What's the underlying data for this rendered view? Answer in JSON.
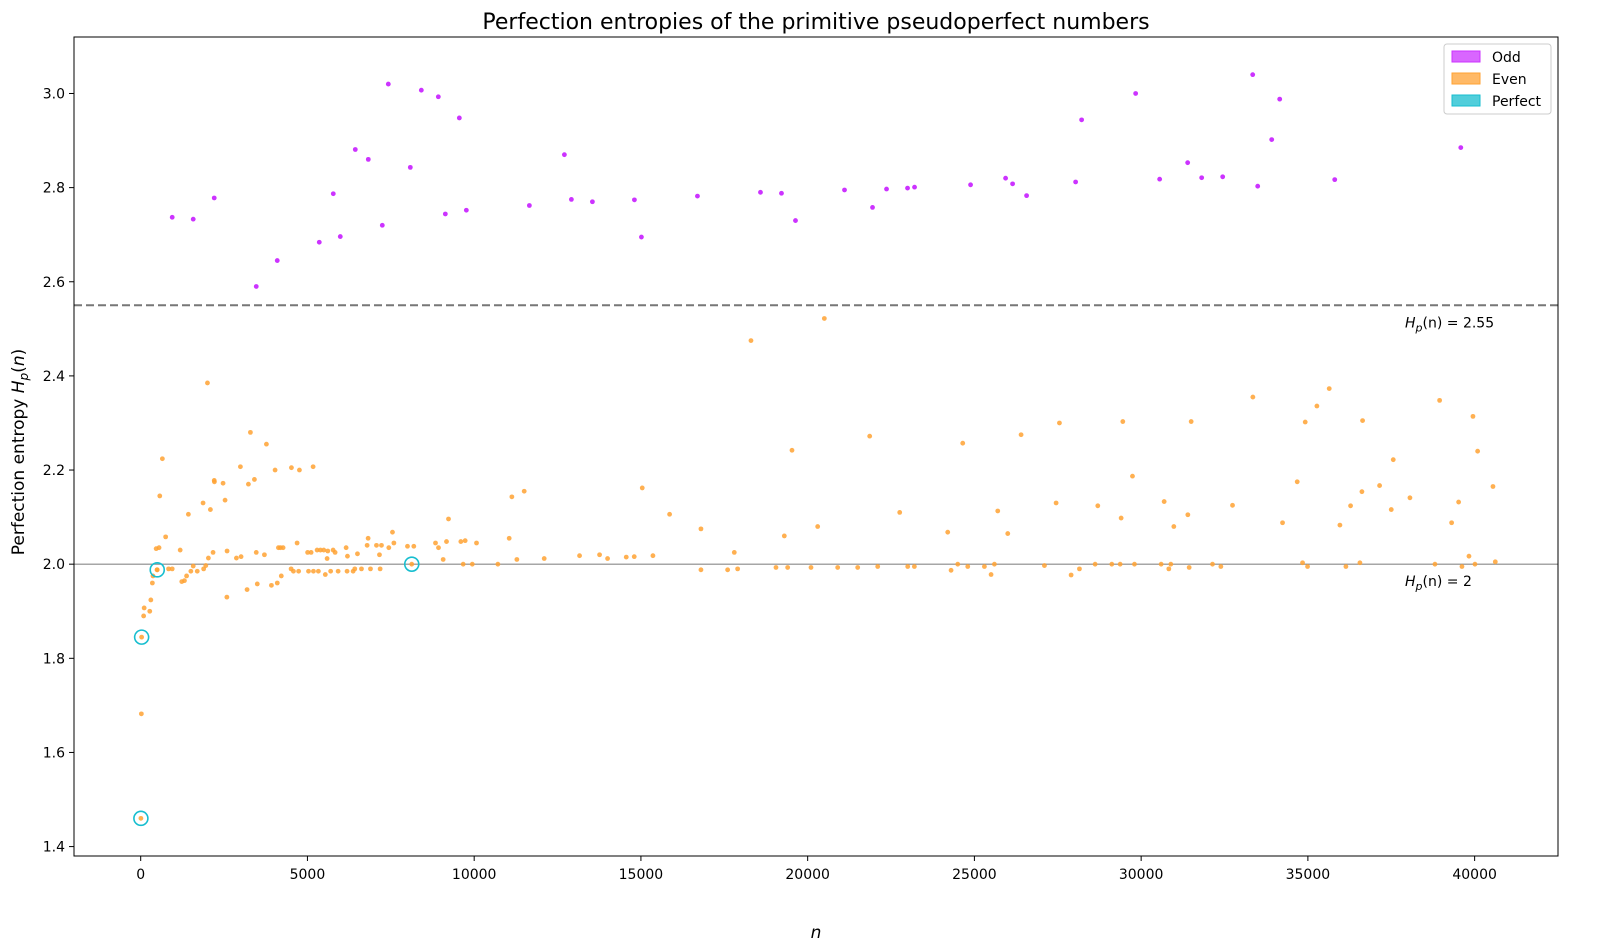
{
  "chart_data": {
    "type": "scatter",
    "title": "Perfection entropies of the primitive pseudoperfect numbers",
    "xlabel": "n",
    "ylabel": "Perfection entropy H_p(n)",
    "xlim": [
      -2000,
      42500
    ],
    "ylim": [
      1.38,
      3.12
    ],
    "xticks": [
      0,
      5000,
      10000,
      15000,
      20000,
      25000,
      30000,
      35000,
      40000
    ],
    "yticks": [
      1.4,
      1.6,
      1.8,
      2.0,
      2.2,
      2.4,
      2.6,
      2.8,
      3.0
    ],
    "grid": false,
    "legend": {
      "position": "top-right",
      "entries": [
        {
          "label": "Odd",
          "color": "#cc33ff"
        },
        {
          "label": "Even",
          "color": "#ffa233"
        },
        {
          "label": "Perfect",
          "color": "#17becf"
        }
      ]
    },
    "reference_lines": [
      {
        "y": 2.55,
        "style": "dashed",
        "color": "#777777",
        "label": "Hp(n) = 2.55"
      },
      {
        "y": 2.0,
        "style": "solid",
        "color": "#888888",
        "label": "Hp(n) = 2"
      }
    ],
    "series": [
      {
        "name": "Odd",
        "color": "#cc33ff",
        "points": [
          [
            945,
            2.737
          ],
          [
            1575,
            2.733
          ],
          [
            2205,
            2.778
          ],
          [
            3465,
            2.59
          ],
          [
            4095,
            2.645
          ],
          [
            5355,
            2.684
          ],
          [
            5775,
            2.787
          ],
          [
            5985,
            2.696
          ],
          [
            6435,
            2.881
          ],
          [
            6825,
            2.86
          ],
          [
            7245,
            2.72
          ],
          [
            7425,
            3.02
          ],
          [
            8085,
            2.843
          ],
          [
            8415,
            3.007
          ],
          [
            8925,
            2.993
          ],
          [
            9135,
            2.744
          ],
          [
            9555,
            2.948
          ],
          [
            9765,
            2.752
          ],
          [
            11655,
            2.762
          ],
          [
            12705,
            2.87
          ],
          [
            12915,
            2.775
          ],
          [
            13545,
            2.77
          ],
          [
            14805,
            2.774
          ],
          [
            15015,
            2.695
          ],
          [
            16695,
            2.782
          ],
          [
            18585,
            2.79
          ],
          [
            19215,
            2.788
          ],
          [
            19635,
            2.73
          ],
          [
            21105,
            2.795
          ],
          [
            21945,
            2.758
          ],
          [
            22365,
            2.797
          ],
          [
            22995,
            2.799
          ],
          [
            23205,
            2.801
          ],
          [
            24885,
            2.806
          ],
          [
            25935,
            2.82
          ],
          [
            26145,
            2.808
          ],
          [
            26565,
            2.783
          ],
          [
            28035,
            2.812
          ],
          [
            28215,
            2.944
          ],
          [
            29835,
            3.0
          ],
          [
            30555,
            2.818
          ],
          [
            31395,
            2.853
          ],
          [
            31815,
            2.821
          ],
          [
            32445,
            2.823
          ],
          [
            33345,
            3.04
          ],
          [
            33495,
            2.803
          ],
          [
            33915,
            2.902
          ],
          [
            34155,
            2.988
          ],
          [
            35805,
            2.817
          ],
          [
            39585,
            2.885
          ]
        ]
      },
      {
        "name": "Even",
        "color": "#ffa233",
        "points": [
          [
            6,
            1.46
          ],
          [
            20,
            1.682
          ],
          [
            28,
            1.845
          ],
          [
            88,
            1.89
          ],
          [
            104,
            1.907
          ],
          [
            272,
            1.9
          ],
          [
            304,
            1.924
          ],
          [
            350,
            1.96
          ],
          [
            368,
            1.975
          ],
          [
            464,
            2.033
          ],
          [
            490,
            1.988
          ],
          [
            496,
            1.988
          ],
          [
            550,
            2.035
          ],
          [
            572,
            2.145
          ],
          [
            650,
            2.224
          ],
          [
            748,
            2.058
          ],
          [
            836,
            1.99
          ],
          [
            945,
            1.99
          ],
          [
            1184,
            2.03
          ],
          [
            1232,
            1.963
          ],
          [
            1312,
            1.965
          ],
          [
            1376,
            1.975
          ],
          [
            1430,
            2.106
          ],
          [
            1504,
            1.985
          ],
          [
            1575,
            1.996
          ],
          [
            1696,
            1.985
          ],
          [
            1870,
            2.13
          ],
          [
            1888,
            1.99
          ],
          [
            1952,
            1.997
          ],
          [
            2002,
            2.385
          ],
          [
            2030,
            2.013
          ],
          [
            2090,
            2.116
          ],
          [
            2170,
            2.025
          ],
          [
            2205,
            2.178
          ],
          [
            2210,
            2.175
          ],
          [
            2470,
            2.172
          ],
          [
            2530,
            2.136
          ],
          [
            2584,
            1.93
          ],
          [
            2590,
            2.028
          ],
          [
            2870,
            2.013
          ],
          [
            2990,
            2.207
          ],
          [
            3010,
            2.016
          ],
          [
            3190,
            1.946
          ],
          [
            3230,
            2.17
          ],
          [
            3290,
            2.28
          ],
          [
            3410,
            2.18
          ],
          [
            3465,
            2.025
          ],
          [
            3496,
            1.958
          ],
          [
            3710,
            2.02
          ],
          [
            3770,
            2.255
          ],
          [
            3920,
            1.955
          ],
          [
            4030,
            2.2
          ],
          [
            4096,
            1.96
          ],
          [
            4130,
            2.035
          ],
          [
            4192,
            2.035
          ],
          [
            4216,
            1.975
          ],
          [
            4270,
            2.035
          ],
          [
            4510,
            1.99
          ],
          [
            4520,
            2.205
          ],
          [
            4580,
            1.985
          ],
          [
            4690,
            2.045
          ],
          [
            4736,
            1.985
          ],
          [
            4760,
            2.2
          ],
          [
            5005,
            2.025
          ],
          [
            5032,
            1.985
          ],
          [
            5110,
            2.025
          ],
          [
            5170,
            2.207
          ],
          [
            5180,
            1.985
          ],
          [
            5290,
            2.03
          ],
          [
            5328,
            1.985
          ],
          [
            5390,
            2.03
          ],
          [
            5490,
            2.03
          ],
          [
            5536,
            1.978
          ],
          [
            5590,
            2.012
          ],
          [
            5610,
            2.028
          ],
          [
            5696,
            1.985
          ],
          [
            5770,
            2.03
          ],
          [
            5830,
            2.025
          ],
          [
            5920,
            1.985
          ],
          [
            6160,
            2.035
          ],
          [
            6188,
            1.985
          ],
          [
            6200,
            2.017
          ],
          [
            6370,
            1.985
          ],
          [
            6420,
            1.99
          ],
          [
            6500,
            2.022
          ],
          [
            6620,
            1.99
          ],
          [
            6790,
            2.04
          ],
          [
            6820,
            2.055
          ],
          [
            6890,
            1.99
          ],
          [
            7070,
            2.04
          ],
          [
            7160,
            2.02
          ],
          [
            7180,
            1.99
          ],
          [
            7220,
            2.04
          ],
          [
            7440,
            2.035
          ],
          [
            7550,
            2.068
          ],
          [
            7592,
            2.045
          ],
          [
            8000,
            2.038
          ],
          [
            8128,
            2.0
          ],
          [
            8190,
            2.038
          ],
          [
            8840,
            2.045
          ],
          [
            8930,
            2.035
          ],
          [
            9070,
            2.01
          ],
          [
            9170,
            2.048
          ],
          [
            9230,
            2.096
          ],
          [
            9600,
            2.048
          ],
          [
            9670,
            2.0
          ],
          [
            9730,
            2.05
          ],
          [
            9944,
            2.0
          ],
          [
            10070,
            2.045
          ],
          [
            10710,
            2.0
          ],
          [
            11050,
            2.055
          ],
          [
            11130,
            2.143
          ],
          [
            11280,
            2.01
          ],
          [
            11500,
            2.155
          ],
          [
            12100,
            2.012
          ],
          [
            13160,
            2.018
          ],
          [
            13760,
            2.02
          ],
          [
            14000,
            2.012
          ],
          [
            14560,
            2.015
          ],
          [
            14800,
            2.016
          ],
          [
            15040,
            2.162
          ],
          [
            15360,
            2.018
          ],
          [
            15860,
            2.106
          ],
          [
            16800,
            1.988
          ],
          [
            16800,
            2.075
          ],
          [
            17600,
            1.988
          ],
          [
            17800,
            2.025
          ],
          [
            17900,
            1.99
          ],
          [
            18300,
            2.475
          ],
          [
            19050,
            1.993
          ],
          [
            19300,
            2.06
          ],
          [
            19400,
            1.993
          ],
          [
            19530,
            2.242
          ],
          [
            20100,
            1.993
          ],
          [
            20300,
            2.08
          ],
          [
            20500,
            2.522
          ],
          [
            20900,
            1.993
          ],
          [
            21500,
            1.993
          ],
          [
            21860,
            2.272
          ],
          [
            22100,
            1.995
          ],
          [
            22760,
            2.11
          ],
          [
            23000,
            1.995
          ],
          [
            23200,
            1.995
          ],
          [
            24200,
            2.068
          ],
          [
            24300,
            1.987
          ],
          [
            24500,
            2.0
          ],
          [
            24650,
            2.257
          ],
          [
            24800,
            1.995
          ],
          [
            25300,
            1.995
          ],
          [
            25500,
            1.978
          ],
          [
            25600,
            2.0
          ],
          [
            25700,
            2.113
          ],
          [
            26000,
            2.065
          ],
          [
            26400,
            2.275
          ],
          [
            27100,
            1.997
          ],
          [
            27450,
            2.13
          ],
          [
            27550,
            2.3
          ],
          [
            27900,
            1.977
          ],
          [
            28150,
            1.99
          ],
          [
            28620,
            2.0
          ],
          [
            28700,
            2.124
          ],
          [
            29120,
            2.0
          ],
          [
            29370,
            2.0
          ],
          [
            29400,
            2.098
          ],
          [
            29450,
            2.303
          ],
          [
            29740,
            2.187
          ],
          [
            29800,
            2.0
          ],
          [
            30600,
            2.0
          ],
          [
            30690,
            2.133
          ],
          [
            30830,
            1.99
          ],
          [
            30890,
            2.0
          ],
          [
            30980,
            2.08
          ],
          [
            31400,
            2.105
          ],
          [
            31440,
            1.993
          ],
          [
            31500,
            2.303
          ],
          [
            32140,
            2.0
          ],
          [
            32390,
            1.995
          ],
          [
            32740,
            2.125
          ],
          [
            33350,
            2.355
          ],
          [
            34240,
            2.088
          ],
          [
            34680,
            2.175
          ],
          [
            34840,
            2.003
          ],
          [
            34920,
            2.302
          ],
          [
            34990,
            1.995
          ],
          [
            35270,
            2.336
          ],
          [
            35640,
            2.373
          ],
          [
            35960,
            2.083
          ],
          [
            36140,
            1.995
          ],
          [
            36280,
            2.124
          ],
          [
            36560,
            2.003
          ],
          [
            36620,
            2.154
          ],
          [
            36640,
            2.305
          ],
          [
            37150,
            2.167
          ],
          [
            37500,
            2.116
          ],
          [
            37560,
            2.222
          ],
          [
            38060,
            2.141
          ],
          [
            38810,
            2.0
          ],
          [
            38950,
            2.348
          ],
          [
            39310,
            2.088
          ],
          [
            39520,
            2.132
          ],
          [
            39620,
            1.995
          ],
          [
            39830,
            2.017
          ],
          [
            39950,
            2.314
          ],
          [
            40010,
            2.0
          ],
          [
            40090,
            2.24
          ],
          [
            40550,
            2.165
          ],
          [
            40620,
            2.005
          ]
        ]
      },
      {
        "name": "Perfect",
        "color": "#17becf",
        "points": [
          [
            6,
            1.46
          ],
          [
            28,
            1.845
          ],
          [
            496,
            1.988
          ],
          [
            8128,
            2.0
          ]
        ]
      }
    ]
  }
}
